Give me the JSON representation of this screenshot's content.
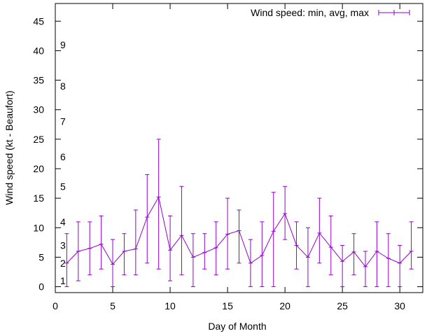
{
  "chart_data": {
    "type": "line",
    "xlabel": "Day of Month",
    "ylabel": "Wind speed (kt - Beaufort)",
    "xlim": [
      0,
      32
    ],
    "ylim": [
      -1,
      48
    ],
    "xticks": [
      0,
      5,
      10,
      15,
      20,
      25,
      30
    ],
    "yticks": [
      0,
      5,
      10,
      15,
      20,
      25,
      30,
      35,
      40,
      45
    ],
    "grid": false,
    "legend_position": "top-right",
    "beaufort_labels": [
      {
        "label": "1",
        "y": 1
      },
      {
        "label": "2",
        "y": 4
      },
      {
        "label": "3",
        "y": 7
      },
      {
        "label": "4",
        "y": 11
      },
      {
        "label": "5",
        "y": 17
      },
      {
        "label": "6",
        "y": 22
      },
      {
        "label": "7",
        "y": 28
      },
      {
        "label": "8",
        "y": 34
      },
      {
        "label": "9",
        "y": 41
      }
    ],
    "series": [
      {
        "name": "Wind speed: min, avg, max",
        "color": "#9400d3",
        "x": [
          1,
          2,
          3,
          4,
          5,
          6,
          7,
          8,
          9,
          10,
          11,
          12,
          13,
          14,
          15,
          16,
          17,
          18,
          19,
          20,
          21,
          22,
          23,
          24,
          25,
          26,
          27,
          28,
          29,
          30,
          31
        ],
        "avg": [
          4,
          6,
          6.5,
          7.2,
          3.8,
          6,
          6.4,
          11.8,
          15.2,
          6.2,
          8.7,
          5,
          5.8,
          6.6,
          8.9,
          9.5,
          4,
          5.3,
          9.4,
          12.4,
          7,
          5,
          9.1,
          6.7,
          4.3,
          5.9,
          3.4,
          6,
          4.8,
          4,
          6
        ],
        "min": [
          0,
          1,
          2,
          3,
          0,
          2,
          2,
          4,
          3,
          1,
          2,
          0,
          3,
          2,
          3,
          4,
          0,
          0,
          0,
          8,
          3,
          0,
          4,
          2,
          0,
          2,
          0,
          0,
          0,
          0,
          3
        ],
        "max": [
          9,
          11,
          11,
          12,
          8,
          9,
          13,
          19,
          25,
          12,
          17,
          9,
          9,
          11,
          15,
          13,
          8,
          11,
          16,
          17,
          11,
          10,
          15,
          12,
          7,
          9,
          6,
          11,
          9,
          7,
          11
        ]
      }
    ]
  }
}
